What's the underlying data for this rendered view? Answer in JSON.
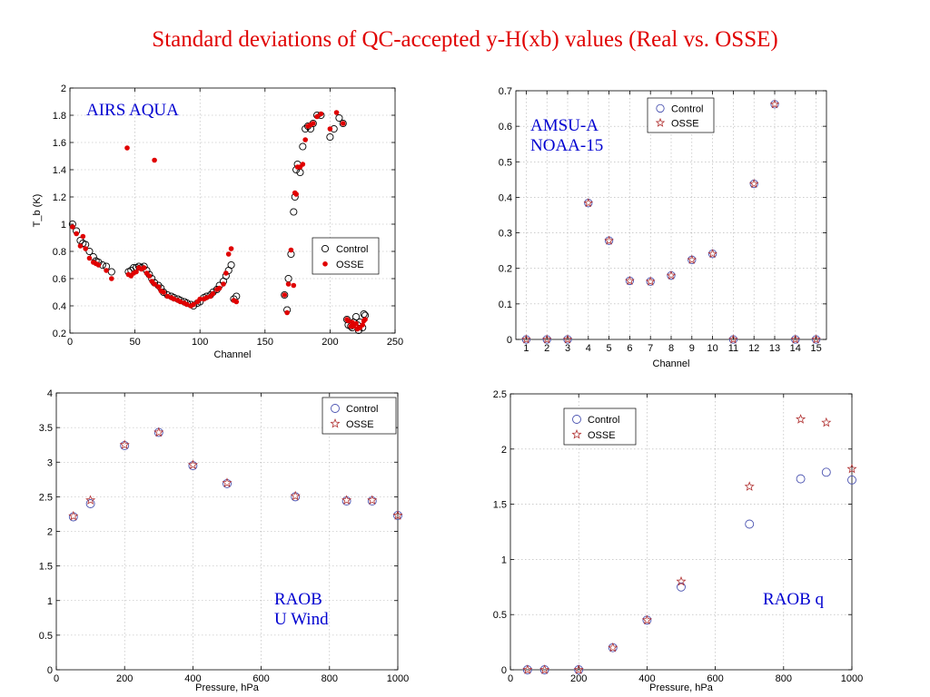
{
  "slide": {
    "title": "Standard deviations of QC-accepted y-H(xb) values (Real vs. OSSE)"
  },
  "colors": {
    "title": "#e00000",
    "control": "#000000",
    "osse": "#e00000",
    "control_b": "#4a52b0",
    "osse_b": "#b03030",
    "annotation": "#0000d0"
  },
  "chart_data": [
    {
      "id": "airs",
      "type": "scatter",
      "annotation": [
        "AIRS AQUA"
      ],
      "xlabel": "Channel",
      "ylabel": "T_b (K)",
      "xlim": [
        0,
        250
      ],
      "ylim": [
        0.2,
        2
      ],
      "xticks": [
        "0",
        "50",
        "100",
        "150",
        "200",
        "250"
      ],
      "yticks": [
        "0.2",
        "0.4",
        "0.6",
        "0.8",
        "1",
        "1.2",
        "1.4",
        "1.6",
        "1.8",
        "2"
      ],
      "grid": true,
      "legend": "right",
      "legend_labels": [
        "Control",
        "OSSE"
      ],
      "series": [
        {
          "name": "Control",
          "marker": "circle-open",
          "x": [
            2,
            5,
            8,
            10,
            12,
            15,
            18,
            20,
            22,
            25,
            28,
            32,
            45,
            47,
            49,
            51,
            53,
            55,
            57,
            59,
            61,
            63,
            65,
            68,
            70,
            72,
            75,
            78,
            80,
            83,
            85,
            88,
            90,
            93,
            95,
            98,
            100,
            103,
            105,
            108,
            110,
            113,
            115,
            118,
            120,
            122,
            124,
            126,
            128,
            165,
            167,
            168,
            170,
            172,
            173,
            174,
            175,
            177,
            179,
            181,
            183,
            185,
            187,
            190,
            193,
            200,
            203,
            207,
            210,
            213,
            214,
            216,
            217,
            218,
            220,
            221,
            222,
            223,
            225,
            226,
            227
          ],
          "values": [
            1.0,
            0.95,
            0.88,
            0.86,
            0.85,
            0.8,
            0.76,
            0.73,
            0.72,
            0.7,
            0.69,
            0.65,
            0.65,
            0.66,
            0.68,
            0.68,
            0.69,
            0.68,
            0.69,
            0.66,
            0.63,
            0.6,
            0.57,
            0.55,
            0.53,
            0.5,
            0.48,
            0.47,
            0.46,
            0.45,
            0.44,
            0.43,
            0.42,
            0.41,
            0.4,
            0.42,
            0.43,
            0.46,
            0.47,
            0.48,
            0.5,
            0.52,
            0.55,
            0.58,
            0.62,
            0.66,
            0.7,
            0.45,
            0.47,
            0.48,
            0.37,
            0.6,
            0.78,
            1.09,
            1.2,
            1.4,
            1.44,
            1.38,
            1.57,
            1.7,
            1.72,
            1.7,
            1.74,
            1.8,
            1.8,
            1.64,
            1.7,
            1.78,
            1.74,
            0.3,
            0.26,
            0.25,
            0.24,
            0.28,
            0.32,
            0.26,
            0.22,
            0.28,
            0.24,
            0.34,
            0.33
          ]
        },
        {
          "name": "OSSE",
          "marker": "dot",
          "x": [
            2,
            5,
            8,
            10,
            12,
            15,
            18,
            20,
            22,
            28,
            32,
            45,
            47,
            49,
            51,
            53,
            55,
            57,
            59,
            61,
            63,
            65,
            68,
            70,
            72,
            75,
            78,
            80,
            83,
            85,
            88,
            90,
            93,
            95,
            98,
            100,
            103,
            105,
            108,
            110,
            113,
            115,
            118,
            120,
            122,
            124,
            126,
            128,
            44,
            65,
            165,
            167,
            168,
            170,
            172,
            173,
            174,
            175,
            177,
            179,
            181,
            183,
            185,
            187,
            190,
            193,
            200,
            205,
            210,
            213,
            214,
            216,
            217,
            218,
            220,
            221,
            222,
            223,
            225,
            226,
            227
          ],
          "values": [
            0.98,
            0.93,
            0.84,
            0.91,
            0.82,
            0.75,
            0.72,
            0.71,
            0.7,
            0.66,
            0.6,
            0.63,
            0.62,
            0.64,
            0.65,
            0.68,
            0.67,
            0.68,
            0.64,
            0.62,
            0.58,
            0.56,
            0.54,
            0.51,
            0.5,
            0.47,
            0.46,
            0.45,
            0.44,
            0.43,
            0.42,
            0.41,
            0.4,
            0.41,
            0.43,
            0.45,
            0.45,
            0.46,
            0.47,
            0.49,
            0.52,
            0.53,
            0.56,
            0.64,
            0.78,
            0.82,
            0.44,
            0.43,
            1.56,
            1.47,
            0.48,
            0.35,
            0.56,
            0.81,
            0.55,
            1.23,
            1.22,
            1.42,
            1.42,
            1.44,
            1.62,
            1.72,
            1.73,
            1.74,
            1.79,
            1.81,
            1.7,
            1.82,
            1.74,
            0.3,
            0.29,
            0.25,
            0.28,
            0.25,
            0.27,
            0.23,
            0.24,
            0.24,
            0.26,
            0.29,
            0.3
          ]
        }
      ]
    },
    {
      "id": "amsu",
      "type": "scatter",
      "annotation": [
        "AMSU-A",
        "NOAA-15"
      ],
      "xlabel": "Channel",
      "ylabel": "",
      "xlim": [
        0.5,
        15.5
      ],
      "ylim": [
        0,
        0.7
      ],
      "xticks": [
        "1",
        "2",
        "3",
        "4",
        "5",
        "6",
        "7",
        "8",
        "9",
        "10",
        "11",
        "12",
        "13",
        "14",
        "15"
      ],
      "yticks": [
        "0",
        "0.1",
        "0.2",
        "0.3",
        "0.4",
        "0.5",
        "0.6",
        "0.7"
      ],
      "grid": true,
      "legend": "top-right",
      "legend_labels": [
        "Control",
        "OSSE"
      ],
      "series": [
        {
          "name": "Control",
          "marker": "circle-open",
          "x": [
            1,
            2,
            3,
            4,
            5,
            6,
            7,
            8,
            9,
            10,
            11,
            12,
            13,
            14,
            15
          ],
          "values": [
            0,
            0,
            0,
            0.384,
            0.278,
            0.165,
            0.163,
            0.18,
            0.224,
            0.241,
            0,
            0.438,
            0.662,
            0,
            0
          ]
        },
        {
          "name": "OSSE",
          "marker": "star",
          "x": [
            1,
            2,
            3,
            4,
            5,
            6,
            7,
            8,
            9,
            10,
            11,
            12,
            13,
            14,
            15
          ],
          "values": [
            0,
            0,
            0,
            0.384,
            0.278,
            0.165,
            0.163,
            0.18,
            0.224,
            0.241,
            0,
            0.438,
            0.662,
            0,
            0
          ]
        }
      ]
    },
    {
      "id": "raob-u",
      "type": "scatter",
      "annotation": [
        "RAOB",
        "U Wind"
      ],
      "xlabel": "Pressure, hPa",
      "ylabel": "",
      "xlim": [
        0,
        1000
      ],
      "ylim": [
        0,
        4
      ],
      "xticks": [
        "0",
        "200",
        "400",
        "600",
        "800",
        "1000"
      ],
      "yticks": [
        "0",
        "0.5",
        "1",
        "1.5",
        "2",
        "2.5",
        "3",
        "3.5",
        "4"
      ],
      "grid": true,
      "legend": "top-right",
      "legend_labels": [
        "Control",
        "OSSE"
      ],
      "series": [
        {
          "name": "Control",
          "marker": "circle-open",
          "x": [
            50,
            100,
            200,
            300,
            400,
            500,
            700,
            850,
            925,
            1000
          ],
          "values": [
            2.21,
            2.4,
            3.24,
            3.43,
            2.95,
            2.69,
            2.5,
            2.44,
            2.44,
            2.23
          ]
        },
        {
          "name": "OSSE",
          "marker": "star",
          "x": [
            50,
            100,
            200,
            300,
            400,
            500,
            700,
            850,
            925,
            1000
          ],
          "values": [
            2.22,
            2.45,
            3.25,
            3.43,
            2.96,
            2.7,
            2.51,
            2.45,
            2.45,
            2.23
          ]
        }
      ]
    },
    {
      "id": "raob-q",
      "type": "scatter",
      "annotation": [
        "RAOB  q"
      ],
      "xlabel": "Pressure, hPa",
      "ylabel": "",
      "xlim": [
        0,
        1000
      ],
      "ylim": [
        0,
        2.5
      ],
      "xticks": [
        "0",
        "200",
        "400",
        "600",
        "800",
        "1000"
      ],
      "yticks": [
        "0",
        "0.5",
        "1",
        "1.5",
        "2",
        "2.5"
      ],
      "grid": true,
      "legend": "top-left",
      "legend_labels": [
        "Control",
        "OSSE"
      ],
      "series": [
        {
          "name": "Control",
          "marker": "circle-open",
          "x": [
            50,
            100,
            200,
            300,
            400,
            500,
            700,
            850,
            925,
            1000
          ],
          "values": [
            0,
            0,
            0,
            0.2,
            0.45,
            0.75,
            1.32,
            1.73,
            1.79,
            1.72
          ]
        },
        {
          "name": "OSSE",
          "marker": "star",
          "x": [
            50,
            100,
            200,
            300,
            400,
            500,
            700,
            850,
            925,
            1000
          ],
          "values": [
            0,
            0,
            0,
            0.2,
            0.45,
            0.8,
            1.66,
            2.27,
            2.24,
            1.82
          ]
        }
      ]
    }
  ]
}
